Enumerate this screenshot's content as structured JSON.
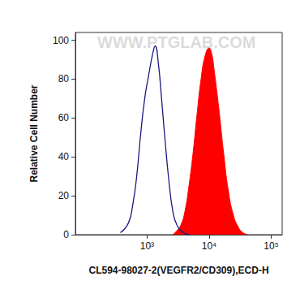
{
  "chart_data": {
    "type": "line",
    "xlabel": "CL594-98027-2(VEGFR2/CD309),ECD-H",
    "ylabel": "Relative Cell Number",
    "annotations": [
      "WWW.PTGLAB.COM"
    ],
    "log": "x",
    "xlim": [
      70,
      150000
    ],
    "xticks": [
      {
        "value": 1000,
        "label": "10³"
      },
      {
        "value": 10000,
        "label": "10⁴"
      },
      {
        "value": 100000,
        "label": "10⁵"
      }
    ],
    "ylim": [
      0,
      104
    ],
    "yticks": [
      0,
      20,
      40,
      60,
      80,
      100
    ],
    "grid": false,
    "series": [
      {
        "type": "line",
        "color": "#1a1a80",
        "x": [
          372,
          500,
          585,
          680,
          790,
          915,
          1060,
          1230,
          1350,
          1520,
          1710,
          1930,
          2240,
          2600,
          3020,
          3840,
          4720
        ],
        "values": [
          1,
          6,
          15,
          30,
          52,
          70,
          82,
          93,
          97,
          88,
          70,
          50,
          28,
          12,
          5,
          1,
          0
        ]
      },
      {
        "type": "area",
        "color": "#ff0000",
        "x": [
          2600,
          3020,
          3510,
          4070,
          4720,
          5500,
          6380,
          7400,
          8600,
          10000,
          11000,
          12000,
          14300,
          17100,
          20500,
          24600,
          29300,
          35000,
          42000
        ],
        "values": [
          0,
          2,
          5,
          12,
          25,
          42,
          62,
          80,
          92,
          96,
          93,
          85,
          65,
          42,
          22,
          10,
          4,
          1,
          0
        ]
      }
    ]
  }
}
